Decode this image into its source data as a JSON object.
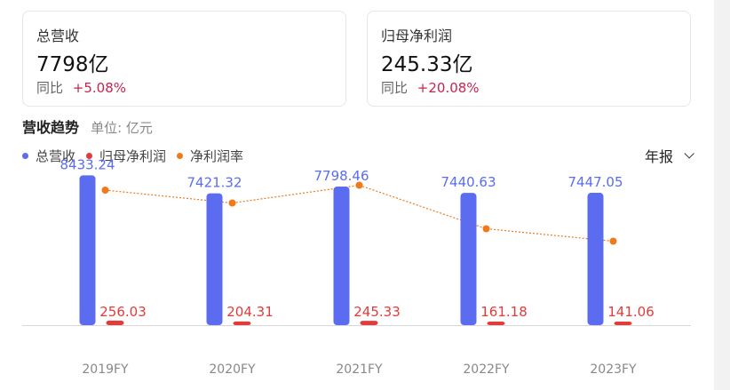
{
  "cards": {
    "revenue": {
      "title": "总营收",
      "value": "7798亿",
      "yoy_label": "同比",
      "yoy_value": "+5.08%"
    },
    "profit": {
      "title": "归母净利润",
      "value": "245.33亿",
      "yoy_label": "同比",
      "yoy_value": "+20.08%"
    }
  },
  "section": {
    "title": "营收趋势",
    "unit": "单位: 亿元"
  },
  "legend": [
    {
      "label": "总营收",
      "color": "#5b6cf0"
    },
    {
      "label": "归母净利润",
      "color": "#e23b3b"
    },
    {
      "label": "净利润率",
      "color": "#f07a1a"
    }
  ],
  "period_select": {
    "value": "年报"
  },
  "colors": {
    "revenue": "#5b6cf0",
    "profit": "#e23b3b",
    "margin": "#f07a1a",
    "yoy_positive": "#c7254e"
  },
  "chart_data": {
    "type": "bar",
    "categories": [
      "2019FY",
      "2020FY",
      "2021FY",
      "2022FY",
      "2023FY"
    ],
    "series": [
      {
        "name": "总营收",
        "values": [
          8433.24,
          7421.32,
          7798.46,
          7440.63,
          7447.05
        ]
      },
      {
        "name": "归母净利润",
        "values": [
          256.03,
          204.31,
          245.33,
          161.18,
          141.06
        ]
      },
      {
        "name": "净利润率",
        "values": [
          3.04,
          2.75,
          3.15,
          2.17,
          1.89
        ],
        "kind": "line"
      }
    ],
    "ylim": [
      0,
      9000
    ],
    "margin_ylim": [
      0,
      3.6
    ],
    "grid": false,
    "legend_position": "top-left"
  }
}
